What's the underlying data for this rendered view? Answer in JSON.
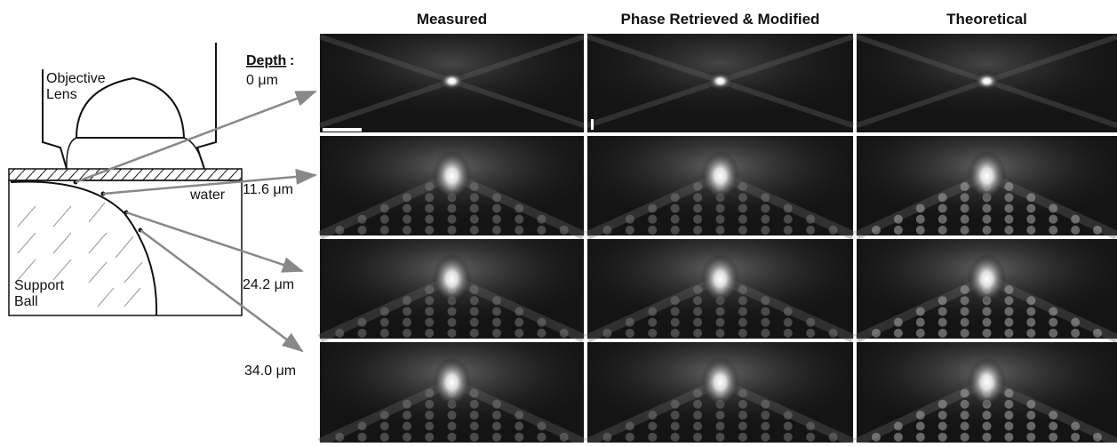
{
  "columns": [
    "Measured",
    "Phase Retrieved & Modified",
    "Theoretical"
  ],
  "depth_header": {
    "title": "Depth",
    "suffix": ":"
  },
  "depths": [
    "0 μm",
    "11.6 μm",
    "24.2 μm",
    "34.0 μm"
  ],
  "diagram": {
    "objective": [
      "Objective",
      "Lens"
    ],
    "water": "water",
    "ball": [
      "Support",
      "Ball"
    ]
  }
}
